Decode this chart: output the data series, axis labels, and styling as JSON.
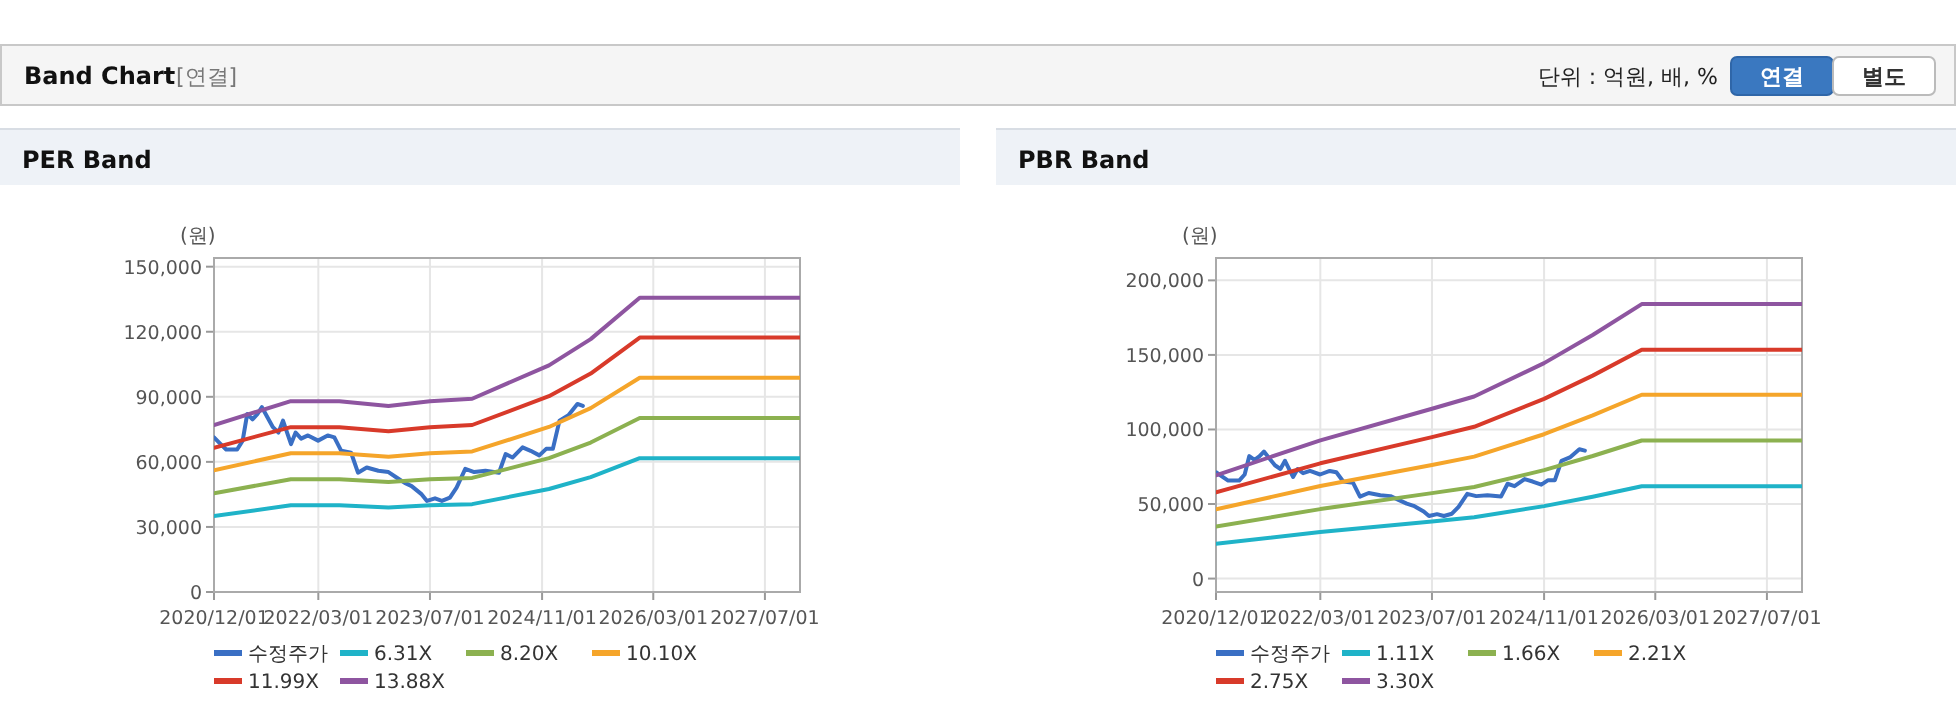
{
  "chart_data": [
    {
      "type": "other",
      "title": "Band Chart",
      "annotations": [
        "[연결]",
        "단위 : 억원, 배, %",
        "연결",
        "별도"
      ]
    },
    {
      "type": "line",
      "title": "PER Band",
      "ylabel": "(원)",
      "grid": true,
      "legend": "bottom",
      "marker": "none",
      "line_style": "solid",
      "xlim": [
        "2020-12-01",
        "2027-12-01"
      ],
      "xticks": [
        {
          "value": "2020-12-01",
          "label": "2020/12/01"
        },
        {
          "value": "2022-03-01",
          "label": "2022/03/01"
        },
        {
          "value": "2023-07-01",
          "label": "2023/07/01"
        },
        {
          "value": "2024-11-01",
          "label": "2024/11/01"
        },
        {
          "value": "2026-03-01",
          "label": "2026/03/01"
        },
        {
          "value": "2027-07-01",
          "label": "2027/07/01"
        }
      ],
      "ylim": [
        0,
        154000
      ],
      "yticks": [
        0,
        {
          "value": 30000,
          "label": "30,000"
        },
        {
          "value": 60000,
          "label": "60,000"
        },
        {
          "value": 90000,
          "label": "90,000"
        },
        {
          "value": 120000,
          "label": "120,000"
        },
        {
          "value": 150000,
          "label": "150,000"
        }
      ],
      "series": [
        {
          "name": "수정주가",
          "color": "#3a6fc4",
          "x": [
            "2020-12-01",
            "2020-12-30",
            "2021-01-23",
            "2021-03-12",
            "2021-04-05",
            "2021-04-25",
            "2021-05-18",
            "2021-06-08",
            "2021-06-28",
            "2021-07-22",
            "2021-08-15",
            "2021-09-08",
            "2021-09-28",
            "2021-10-18",
            "2021-11-02",
            "2021-11-22",
            "2021-12-16",
            "2022-01-15",
            "2022-02-28",
            "2022-04-11",
            "2022-05-10",
            "2022-06-09",
            "2022-07-22",
            "2022-08-21",
            "2022-09-28",
            "2022-11-18",
            "2023-01-01",
            "2023-02-05",
            "2023-03-13",
            "2023-04-12",
            "2023-05-26",
            "2023-06-18",
            "2023-07-23",
            "2023-08-22",
            "2023-09-26",
            "2023-10-25",
            "2023-12-02",
            "2024-01-10",
            "2024-02-28",
            "2024-04-27",
            "2024-05-26",
            "2024-06-25",
            "2024-08-08",
            "2024-09-12",
            "2024-10-20",
            "2024-11-19",
            "2024-12-18",
            "2025-01-16",
            "2025-02-24",
            "2025-04-04",
            "2025-04-28"
          ],
          "values": [
            71300,
            68200,
            65700,
            65700,
            69800,
            82100,
            79600,
            82000,
            85200,
            80600,
            76000,
            73500,
            79000,
            72800,
            68200,
            73500,
            70700,
            72200,
            69800,
            72200,
            71300,
            65100,
            64200,
            55000,
            57400,
            55900,
            55300,
            52800,
            50300,
            48800,
            45000,
            42000,
            43200,
            42000,
            43500,
            48100,
            56800,
            55300,
            55900,
            55000,
            63600,
            62000,
            66700,
            65100,
            63000,
            66000,
            66000,
            79000,
            81500,
            86700,
            85800
          ]
        },
        {
          "name": "6.31X",
          "color": "#1fb3c8",
          "x": [
            "2020-12-01",
            "2021-11-01",
            "2022-06-01",
            "2023-01-01",
            "2023-07-01",
            "2024-01-01",
            "2024-12-01",
            "2025-06-01",
            "2026-01-01",
            "2027-12-01"
          ],
          "values": [
            35000,
            40000,
            40000,
            39000,
            40000,
            40500,
            47500,
            53000,
            61700,
            61700
          ]
        },
        {
          "name": "8.20X",
          "color": "#8cb150",
          "x": [
            "2020-12-01",
            "2021-11-01",
            "2022-06-01",
            "2023-01-01",
            "2023-07-01",
            "2024-01-01",
            "2024-12-01",
            "2025-06-01",
            "2026-01-01",
            "2027-12-01"
          ],
          "values": [
            45500,
            52000,
            52000,
            50700,
            52000,
            52600,
            61700,
            68900,
            80200,
            80200
          ]
        },
        {
          "name": "10.10X",
          "color": "#f5a52a",
          "x": [
            "2020-12-01",
            "2021-11-01",
            "2022-06-01",
            "2023-01-01",
            "2023-07-01",
            "2024-01-01",
            "2024-12-01",
            "2025-06-01",
            "2026-01-01",
            "2027-12-01"
          ],
          "values": [
            56100,
            64000,
            64000,
            62400,
            64000,
            64800,
            76100,
            84800,
            98800,
            98800
          ]
        },
        {
          "name": "11.99X",
          "color": "#d83a2a",
          "x": [
            "2020-12-01",
            "2021-11-01",
            "2022-06-01",
            "2023-01-01",
            "2023-07-01",
            "2024-01-01",
            "2024-12-01",
            "2025-06-01",
            "2026-01-01",
            "2027-12-01"
          ],
          "values": [
            66500,
            76000,
            76000,
            74100,
            76000,
            77000,
            90300,
            100700,
            117300,
            117300
          ]
        },
        {
          "name": "13.88X",
          "color": "#8e55a0",
          "x": [
            "2020-12-01",
            "2021-11-01",
            "2022-06-01",
            "2023-01-01",
            "2023-07-01",
            "2024-01-01",
            "2024-12-01",
            "2025-06-01",
            "2026-01-01",
            "2027-12-01"
          ],
          "values": [
            77000,
            88000,
            88000,
            85800,
            88000,
            89100,
            104500,
            116600,
            135700,
            135700
          ]
        }
      ]
    },
    {
      "type": "line",
      "title": "PBR Band",
      "ylabel": "(원)",
      "grid": true,
      "legend": "bottom",
      "marker": "none",
      "line_style": "solid",
      "xlim": [
        "2020-12-01",
        "2027-12-01"
      ],
      "xticks": [
        {
          "value": "2020-12-01",
          "label": "2020/12/01"
        },
        {
          "value": "2022-03-01",
          "label": "2022/03/01"
        },
        {
          "value": "2023-07-01",
          "label": "2023/07/01"
        },
        {
          "value": "2024-11-01",
          "label": "2024/11/01"
        },
        {
          "value": "2026-03-01",
          "label": "2026/03/01"
        },
        {
          "value": "2027-07-01",
          "label": "2027/07/01"
        }
      ],
      "ylim": [
        -9000,
        215000
      ],
      "yticks": [
        0,
        {
          "value": 50000,
          "label": "50,000"
        },
        {
          "value": 100000,
          "label": "100,000"
        },
        {
          "value": 150000,
          "label": "150,000"
        },
        {
          "value": 200000,
          "label": "200,000"
        }
      ],
      "series": [
        {
          "name": "수정주가",
          "color": "#3a6fc4",
          "x": [
            "2020-12-01",
            "2020-12-30",
            "2021-01-23",
            "2021-03-12",
            "2021-04-05",
            "2021-04-25",
            "2021-05-18",
            "2021-06-08",
            "2021-06-28",
            "2021-07-22",
            "2021-08-15",
            "2021-09-08",
            "2021-09-28",
            "2021-10-18",
            "2021-11-02",
            "2021-11-22",
            "2021-12-16",
            "2022-01-15",
            "2022-02-28",
            "2022-04-11",
            "2022-05-10",
            "2022-06-09",
            "2022-07-22",
            "2022-08-21",
            "2022-09-28",
            "2022-11-18",
            "2023-01-01",
            "2023-02-05",
            "2023-03-13",
            "2023-04-12",
            "2023-05-26",
            "2023-06-18",
            "2023-07-23",
            "2023-08-22",
            "2023-09-26",
            "2023-10-25",
            "2023-12-02",
            "2024-01-10",
            "2024-02-28",
            "2024-04-27",
            "2024-05-26",
            "2024-06-25",
            "2024-08-08",
            "2024-09-12",
            "2024-10-20",
            "2024-11-19",
            "2024-12-18",
            "2025-01-16",
            "2025-02-24",
            "2025-04-04",
            "2025-04-28"
          ],
          "values": [
            71300,
            68200,
            65700,
            65700,
            69800,
            82100,
            79600,
            82000,
            85200,
            80600,
            76000,
            73500,
            79000,
            72800,
            68200,
            73500,
            70700,
            72200,
            69800,
            72200,
            71300,
            65100,
            64200,
            55000,
            57400,
            55900,
            55300,
            52800,
            50300,
            48800,
            45000,
            42000,
            43200,
            42000,
            43500,
            48100,
            56800,
            55300,
            55900,
            55000,
            63600,
            62000,
            66700,
            65100,
            63000,
            66000,
            66000,
            79000,
            81500,
            86700,
            85800
          ]
        },
        {
          "name": "1.11X",
          "color": "#1fb3c8",
          "x": [
            "2020-12-01",
            "2022-03-01",
            "2023-07-01",
            "2024-01-01",
            "2024-11-01",
            "2025-06-01",
            "2026-01-01",
            "2027-12-01"
          ],
          "values": [
            23300,
            31200,
            38300,
            41100,
            48600,
            54900,
            61900,
            61900
          ]
        },
        {
          "name": "1.66X",
          "color": "#8cb150",
          "x": [
            "2020-12-01",
            "2022-03-01",
            "2023-07-01",
            "2024-01-01",
            "2024-11-01",
            "2025-06-01",
            "2026-01-01",
            "2027-12-01"
          ],
          "values": [
            34900,
            46600,
            57300,
            61400,
            72700,
            82200,
            92600,
            92600
          ]
        },
        {
          "name": "2.21X",
          "color": "#f5a52a",
          "x": [
            "2020-12-01",
            "2022-03-01",
            "2023-07-01",
            "2024-01-01",
            "2024-11-01",
            "2025-06-01",
            "2026-01-01",
            "2027-12-01"
          ],
          "values": [
            46400,
            62100,
            76200,
            81800,
            96800,
            109400,
            123300,
            123300
          ]
        },
        {
          "name": "2.75X",
          "color": "#d83a2a",
          "x": [
            "2020-12-01",
            "2022-03-01",
            "2023-07-01",
            "2024-01-01",
            "2024-11-01",
            "2025-06-01",
            "2026-01-01",
            "2027-12-01"
          ],
          "values": [
            57800,
            77300,
            94900,
            101800,
            120500,
            136100,
            153500,
            153500
          ]
        },
        {
          "name": "3.30X",
          "color": "#8e55a0",
          "x": [
            "2020-12-01",
            "2022-03-01",
            "2023-07-01",
            "2024-01-01",
            "2024-11-01",
            "2025-06-01",
            "2026-01-01",
            "2027-12-01"
          ],
          "values": [
            69300,
            92700,
            113900,
            122100,
            144500,
            163400,
            184100,
            184100
          ]
        }
      ]
    }
  ]
}
